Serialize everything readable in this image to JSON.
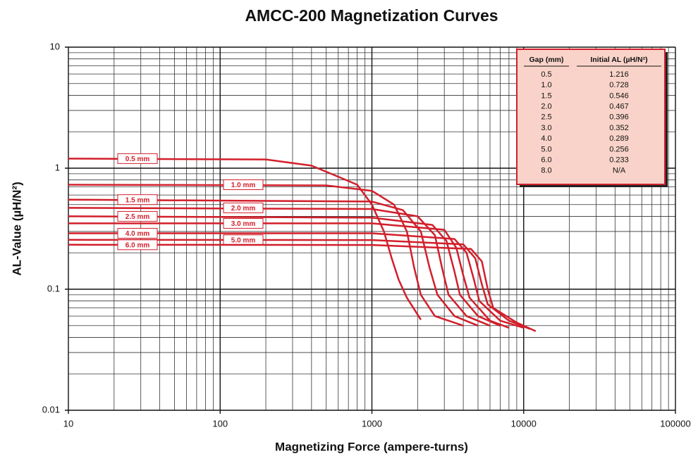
{
  "chart_data": {
    "type": "line",
    "title": "AMCC-200 Magnetization Curves",
    "x_label": "Magnetizing Force (ampere-turns)",
    "y_label": "AL-Value (µH/N²)",
    "log_x": true,
    "log_y": true,
    "grid": true,
    "xlim": [
      10,
      100000
    ],
    "ylim": [
      0.01,
      10
    ],
    "xticks": [
      10,
      100,
      1000,
      10000,
      100000
    ],
    "yticks": [
      0.01,
      0.1,
      1,
      10
    ],
    "color": "#d21f2b",
    "series": [
      {
        "name": "0.5 mm",
        "x": [
          10,
          200,
          400,
          600,
          800,
          1000,
          1200,
          1350,
          1500,
          1700,
          2100
        ],
        "values": [
          1.2,
          1.18,
          1.05,
          0.85,
          0.73,
          0.5,
          0.3,
          0.18,
          0.12,
          0.085,
          0.056
        ]
      },
      {
        "name": "1.0 mm",
        "x": [
          10,
          500,
          1000,
          1400,
          1700,
          1900,
          2100,
          2600,
          4000
        ],
        "values": [
          0.73,
          0.72,
          0.65,
          0.5,
          0.3,
          0.15,
          0.09,
          0.06,
          0.05
        ]
      },
      {
        "name": "1.5 mm",
        "x": [
          10,
          1000,
          1600,
          2100,
          2400,
          2700,
          3500,
          5000
        ],
        "values": [
          0.55,
          0.53,
          0.45,
          0.3,
          0.15,
          0.09,
          0.06,
          0.05
        ]
      },
      {
        "name": "2.0 mm",
        "x": [
          10,
          1000,
          2000,
          2600,
          2900,
          3200,
          4200,
          6000
        ],
        "values": [
          0.47,
          0.46,
          0.4,
          0.28,
          0.15,
          0.09,
          0.06,
          0.05
        ]
      },
      {
        "name": "2.5 mm",
        "x": [
          10,
          1000,
          2500,
          3100,
          3500,
          3800,
          5000,
          7000
        ],
        "values": [
          0.4,
          0.39,
          0.34,
          0.25,
          0.14,
          0.09,
          0.06,
          0.05
        ]
      },
      {
        "name": "3.0 mm",
        "x": [
          10,
          1000,
          3000,
          3600,
          4000,
          4400,
          6000,
          8000
        ],
        "values": [
          0.35,
          0.35,
          0.31,
          0.22,
          0.13,
          0.085,
          0.055,
          0.048
        ]
      },
      {
        "name": "4.0 mm",
        "x": [
          10,
          1000,
          3500,
          4200,
          4700,
          5100,
          7000,
          10000
        ],
        "values": [
          0.29,
          0.29,
          0.26,
          0.2,
          0.12,
          0.08,
          0.055,
          0.048
        ]
      },
      {
        "name": "5.0 mm",
        "x": [
          10,
          1000,
          4000,
          4800,
          5300,
          5800,
          8000,
          11000
        ],
        "values": [
          0.256,
          0.255,
          0.235,
          0.18,
          0.11,
          0.075,
          0.055,
          0.047
        ]
      },
      {
        "name": "6.0 mm",
        "x": [
          10,
          1000,
          4500,
          5300,
          5800,
          6300,
          9000,
          12000
        ],
        "values": [
          0.233,
          0.232,
          0.215,
          0.17,
          0.1,
          0.07,
          0.053,
          0.045
        ]
      }
    ],
    "table": {
      "columns": [
        "Gap (mm)",
        "Initial AL (µH/N²)"
      ],
      "rows": [
        [
          "0.5",
          "1.216"
        ],
        [
          "1.0",
          "0.728"
        ],
        [
          "1.5",
          "0.546"
        ],
        [
          "2.0",
          "0.467"
        ],
        [
          "2.5",
          "0.396"
        ],
        [
          "3.0",
          "0.352"
        ],
        [
          "4.0",
          "0.289"
        ],
        [
          "5.0",
          "0.256"
        ],
        [
          "6.0",
          "0.233"
        ],
        [
          "8.0",
          "N/A"
        ]
      ]
    }
  }
}
